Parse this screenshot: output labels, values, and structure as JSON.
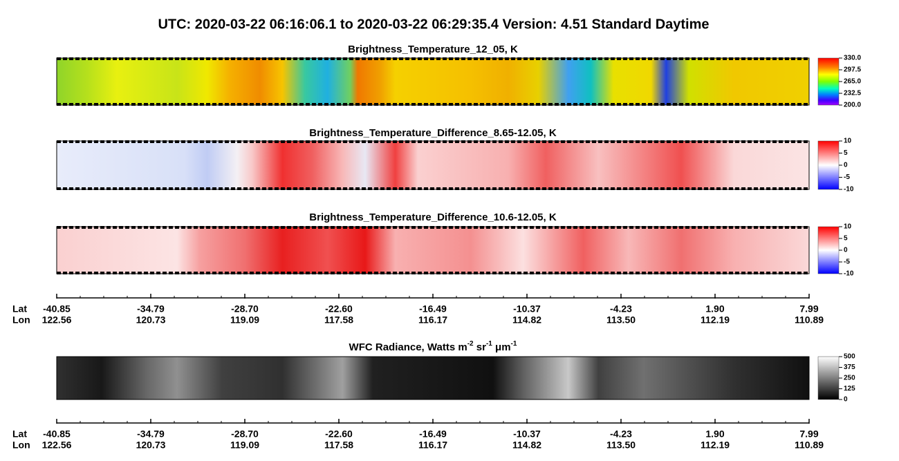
{
  "header": {
    "title": "UTC:  2020-03-22   06:16:06.1  to  2020-03-22   06:29:35.4    Version: 4.51  Standard Daytime"
  },
  "panels": [
    {
      "title": [
        {
          "text": "Brightness_Temperature_12_05, K"
        }
      ],
      "colorbar": [
        "330.0",
        "297.5",
        "265.0",
        "232.5",
        "200.0"
      ]
    },
    {
      "title": [
        {
          "text": "Brightness_Temperature_Difference_8.65-12.05, K"
        }
      ],
      "colorbar": [
        "10",
        "5",
        "0",
        "-5",
        "-10"
      ]
    },
    {
      "title": [
        {
          "text": "Brightness_Temperature_Difference_10.6-12.05, K"
        }
      ],
      "colorbar": [
        "10",
        "5",
        "0",
        "-5",
        "-10"
      ]
    },
    {
      "title": [
        {
          "text": "WFC Radiance, Watts m"
        },
        {
          "text": "-2",
          "sup": true
        },
        {
          "text": " sr"
        },
        {
          "text": "-1",
          "sup": true
        },
        {
          "text": " μm"
        },
        {
          "text": "-1",
          "sup": true
        }
      ],
      "colorbar": [
        "500",
        "375",
        "250",
        "125",
        "0"
      ]
    }
  ],
  "axis": {
    "lat_label": "Lat",
    "lon_label": "Lon",
    "lat": [
      "-40.85",
      "-34.79",
      "-28.70",
      "-22.60",
      "-16.49",
      "-10.37",
      "-4.23",
      "1.90",
      "7.99"
    ],
    "lon": [
      "122.56",
      "120.73",
      "119.09",
      "117.58",
      "116.17",
      "114.82",
      "113.50",
      "112.19",
      "110.89"
    ]
  }
}
